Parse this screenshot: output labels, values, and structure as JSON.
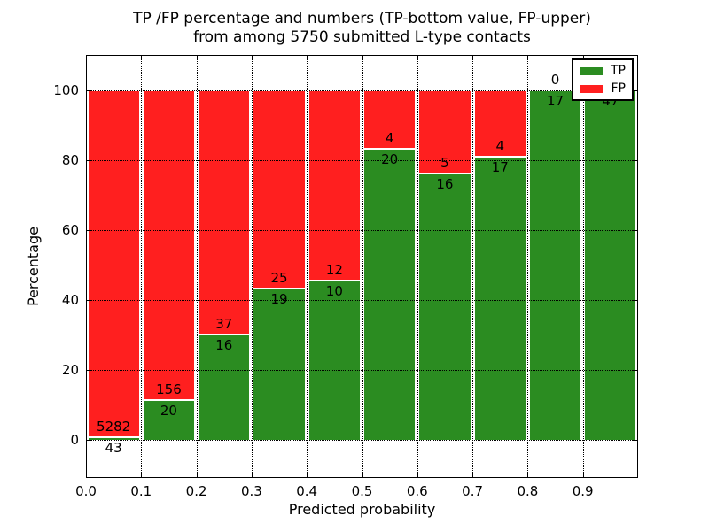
{
  "chart_data": {
    "type": "bar",
    "stacked": true,
    "title_line1": "TP /FP percentage and numbers (TP-bottom value, FP-upper)",
    "title_line2": "from among 5750 submitted L-type contacts",
    "xlabel": "Predicted probability",
    "ylabel": "Percentage",
    "x_tick_labels": [
      "0.0",
      "0.1",
      "0.2",
      "0.3",
      "0.4",
      "0.5",
      "0.6",
      "0.7",
      "0.8",
      "0.9"
    ],
    "x_tick_values": [
      0.0,
      0.1,
      0.2,
      0.3,
      0.4,
      0.5,
      0.6,
      0.7,
      0.8,
      0.9
    ],
    "y_tick_labels": [
      "0",
      "20",
      "40",
      "60",
      "80",
      "100"
    ],
    "y_tick_values": [
      0,
      20,
      40,
      60,
      80,
      100
    ],
    "xlim": [
      0.0,
      1.0
    ],
    "ylim": [
      -11,
      110
    ],
    "bin_width": 0.1,
    "grid": "dotted",
    "categories": [
      "0.0",
      "0.1",
      "0.2",
      "0.3",
      "0.4",
      "0.5",
      "0.6",
      "0.7",
      "0.8",
      "0.9"
    ],
    "series": [
      {
        "name": "TP",
        "color": "#2b8c21",
        "values": [
          43,
          20,
          16,
          19,
          10,
          20,
          16,
          17,
          17,
          47
        ]
      },
      {
        "name": "FP",
        "color": "#ff1f1f",
        "values": [
          5282,
          156,
          37,
          25,
          12,
          4,
          5,
          4,
          0,
          0
        ]
      }
    ],
    "tp_percent": [
      0.81,
      11.36,
      30.19,
      43.18,
      45.45,
      83.33,
      76.19,
      80.95,
      100,
      100
    ],
    "legend": {
      "position": "upper right",
      "entries": [
        {
          "label": "TP",
          "color": "#2b8c21"
        },
        {
          "label": "FP",
          "color": "#ff1f1f"
        }
      ]
    }
  }
}
